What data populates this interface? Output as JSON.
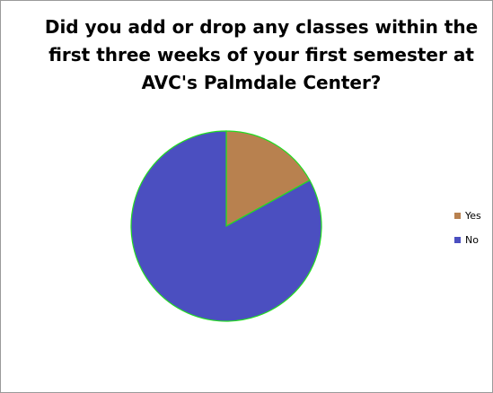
{
  "chart_data": {
    "type": "pie",
    "title": "Did you add or drop any classes within the\nfirst three weeks of your first semester at\nAVC's Palmdale Center?",
    "categories": [
      "Yes",
      "No"
    ],
    "values": [
      17,
      83
    ],
    "colors": [
      "#b8814f",
      "#4b4fc0"
    ],
    "slice_edge_color": "#22dd22",
    "legend_position": "right",
    "start_angle": "12 o'clock",
    "direction": "clockwise"
  }
}
